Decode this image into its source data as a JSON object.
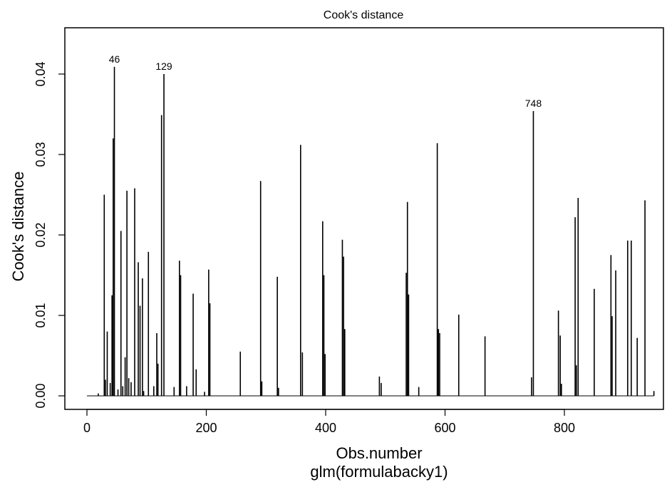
{
  "chart_data": {
    "type": "bar",
    "title": "Cook's distance",
    "xlabel": "Obs.number",
    "subtitle": "glm(formulabacky1)",
    "ylabel": "Cook's distance",
    "xlim": [
      0,
      950
    ],
    "ylim": [
      0,
      0.045
    ],
    "xticks": [
      0,
      200,
      400,
      600,
      800
    ],
    "yticks": [
      0.0,
      0.01,
      0.02,
      0.03,
      0.04
    ],
    "ytick_labels": [
      "0.00",
      "0.01",
      "0.02",
      "0.03",
      "0.04"
    ],
    "grid": false,
    "x": [
      19,
      29,
      31,
      34,
      39,
      42,
      44,
      46,
      52,
      57,
      60,
      64,
      67,
      70,
      74,
      80,
      86,
      89,
      93,
      95,
      103,
      112,
      117,
      119,
      125,
      129,
      146,
      155,
      157,
      167,
      178,
      183,
      197,
      204,
      206,
      257,
      291,
      293,
      319,
      321,
      358,
      361,
      395,
      397,
      399,
      428,
      430,
      432,
      490,
      493,
      535,
      537,
      539,
      556,
      587,
      589,
      591,
      623,
      667,
      745,
      748,
      790,
      793,
      795,
      818,
      820,
      823,
      850,
      878,
      880,
      886,
      906,
      912,
      922,
      935,
      950
    ],
    "y": [
      0.0003,
      0.025,
      0.002,
      0.008,
      0.0016,
      0.0125,
      0.032,
      0.0409,
      0.0008,
      0.0205,
      0.0012,
      0.0048,
      0.0255,
      0.0022,
      0.0017,
      0.0258,
      0.0166,
      0.0112,
      0.0146,
      0.0006,
      0.0179,
      0.0012,
      0.0078,
      0.004,
      0.0349,
      0.04,
      0.0011,
      0.0168,
      0.015,
      0.0012,
      0.0127,
      0.0033,
      0.0005,
      0.0157,
      0.0115,
      0.0055,
      0.0267,
      0.0018,
      0.0148,
      0.001,
      0.0312,
      0.0054,
      0.0217,
      0.015,
      0.0052,
      0.0194,
      0.0173,
      0.0083,
      0.0024,
      0.0016,
      0.0153,
      0.0241,
      0.0126,
      0.0011,
      0.0314,
      0.0083,
      0.0078,
      0.0101,
      0.0074,
      0.0023,
      0.0354,
      0.0106,
      0.0075,
      0.0015,
      0.0222,
      0.0038,
      0.0246,
      0.0133,
      0.0175,
      0.0099,
      0.0156,
      0.0193,
      0.0193,
      0.0072,
      0.0243,
      0.0006
    ],
    "annotations": [
      {
        "x": 46,
        "y": 0.0409,
        "label": "46"
      },
      {
        "x": 129,
        "y": 0.04,
        "label": "129"
      },
      {
        "x": 748,
        "y": 0.0354,
        "label": "748"
      }
    ]
  }
}
